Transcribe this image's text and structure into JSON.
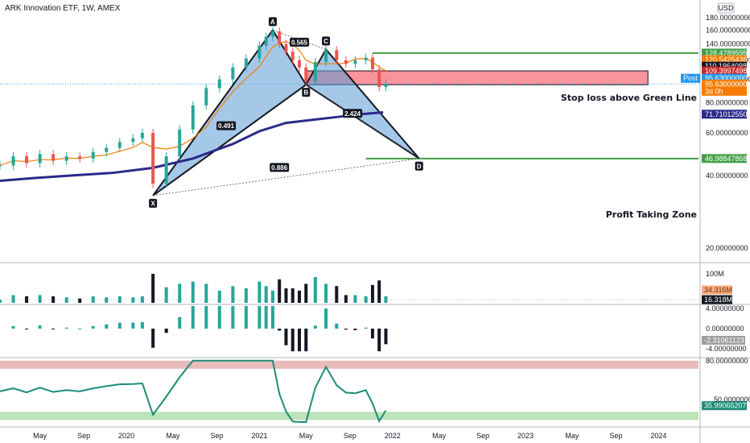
{
  "title": "ARK Innovation ETF, 1W, AMEX",
  "currency": "USD",
  "colors": {
    "up": "#26a69a",
    "down": "#ef5350",
    "pattern_fill": "#5b9bd5",
    "green_line": "#43a047",
    "stop_box": "#f7818a",
    "ma_long": "#2b2a8a",
    "ma_orange": "#f57c00",
    "rsi_line": "#1c8c78",
    "volume_ma": "#ff9800"
  },
  "price_axis": {
    "ticks": [
      "180.00000000",
      "160.00000000",
      "140.00000000",
      "120.00000000",
      "100.00000000",
      "80.00000000",
      "60.00000000",
      "40.00000000",
      "20.00000000"
    ],
    "range": [
      10,
      186
    ]
  },
  "price_tags": [
    {
      "label": "",
      "value": "128.47895952",
      "price": 128.48,
      "color": "#43a047",
      "text_color": "#ffffff"
    },
    {
      "label": "",
      "value": "120.54254369",
      "price": 120.54,
      "color": "#f57c00",
      "text_color": "#ffffff"
    },
    {
      "label": "",
      "value": "110.19640982",
      "price": 113.4,
      "color": "#131722",
      "text_color": "#ffffff"
    },
    {
      "label": "",
      "value": "109.39974983",
      "price": 108.4,
      "color": "#c62828",
      "text_color": "#ffffff"
    },
    {
      "label": "Post",
      "value": "95.63000000",
      "price": 101.0,
      "color": "#2196f3",
      "text_color": "#ffffff"
    },
    {
      "label": "",
      "value": "95.63000000",
      "price": 95.63,
      "sub": "3d 0h",
      "color": "#f57c00",
      "text_color": "#ffffff"
    },
    {
      "label": "",
      "value": "71.71012550",
      "price": 71.71,
      "color": "#2b2a8a",
      "text_color": "#ffffff"
    },
    {
      "label": "",
      "value": "46.98847868",
      "price": 46.99,
      "color": "#43a047",
      "text_color": "#ffffff"
    }
  ],
  "time_axis": [
    "May",
    "Sep",
    "2020",
    "May",
    "Sep",
    "2021",
    "May",
    "Sep",
    "2022",
    "May",
    "Sep",
    "2023",
    "May",
    "Sep",
    "2024"
  ],
  "annotations": {
    "stop_loss": "Stop loss above Green Line",
    "profit": "Profit Taking Zone"
  },
  "harmonic": {
    "points": [
      {
        "label": "X",
        "t": 2020.2,
        "price": 33
      },
      {
        "label": "A",
        "t": 2021.1,
        "price": 160
      },
      {
        "label": "B",
        "t": 2021.35,
        "price": 95
      },
      {
        "label": "C",
        "t": 2021.5,
        "price": 133
      },
      {
        "label": "D",
        "t": 2022.2,
        "price": 47
      }
    ],
    "ratios": [
      {
        "label": "0.565",
        "t": 2021.3,
        "price": 142
      },
      {
        "label": "0.491",
        "t": 2020.75,
        "price": 64
      },
      {
        "label": "2.424",
        "t": 2021.7,
        "price": 72
      },
      {
        "label": "0.886",
        "t": 2021.15,
        "price": 43
      }
    ]
  },
  "volume": {
    "axis_label": "100M",
    "tags": [
      {
        "value": "34.316M",
        "color": "#f9a97b",
        "text_color": "#6d3a1a"
      },
      {
        "value": "16.318M",
        "color": "#131722",
        "text_color": "#ffffff"
      }
    ]
  },
  "macd": {
    "ticks": [
      "4.00000000",
      "0.00000000",
      "-4.00000000"
    ],
    "tag": {
      "value": "-2.31061123",
      "color": "#9e9e9e",
      "text_color": "#ffffff"
    }
  },
  "rsi": {
    "ticks": [
      "80.00000000"
    ],
    "partial_tick": "50.00000000",
    "tag": {
      "value": "35.99065207",
      "color": "#1c8c78",
      "text_color": "#ffffff"
    }
  },
  "chart_data": {
    "type": "line",
    "title": "ARK Innovation ETF, 1W, AMEX",
    "xlabel": "",
    "ylabel": "",
    "ylim": [
      10,
      186
    ],
    "xlim": [
      2019.05,
      2024.3
    ],
    "grid": false,
    "series": [
      {
        "name": "",
        "x": [
          2019.05,
          2019.15,
          2019.25,
          2019.35,
          2019.45,
          2019.55,
          2019.65,
          2019.75,
          2019.85,
          2019.95,
          2020.05,
          2020.12,
          2020.2,
          2020.3,
          2020.4,
          2020.5,
          2020.6,
          2020.7,
          2020.8,
          2020.9,
          2021.0,
          2021.05,
          2021.1,
          2021.15,
          2021.2,
          2021.25,
          2021.3,
          2021.35,
          2021.42,
          2021.5,
          2021.58,
          2021.65,
          2021.72,
          2021.8,
          2021.85,
          2021.9,
          2021.95
        ],
        "values": [
          44,
          48,
          45,
          49,
          46,
          48,
          47,
          50,
          52,
          55,
          57,
          60,
          37,
          48,
          62,
          78,
          92,
          100,
          112,
          122,
          138,
          150,
          158,
          140,
          130,
          120,
          112,
          98,
          118,
          132,
          120,
          116,
          120,
          123,
          110,
          93,
          96
        ]
      },
      {
        "name": "",
        "x": [
          2019.05,
          2019.3,
          2019.6,
          2019.9,
          2020.2,
          2020.5,
          2020.8,
          2021.0,
          2021.2,
          2021.4,
          2021.6,
          2021.8,
          2021.93
        ],
        "values": [
          38,
          39,
          40,
          41,
          43,
          47,
          54,
          61,
          66,
          68,
          70,
          72,
          73
        ]
      }
    ],
    "harmonic_points": {
      "X": 33,
      "A": 160,
      "B": 95,
      "C": 133,
      "D": 47
    },
    "levels": {
      "stop_loss": 128.48,
      "profit_zone": 46.99
    }
  }
}
